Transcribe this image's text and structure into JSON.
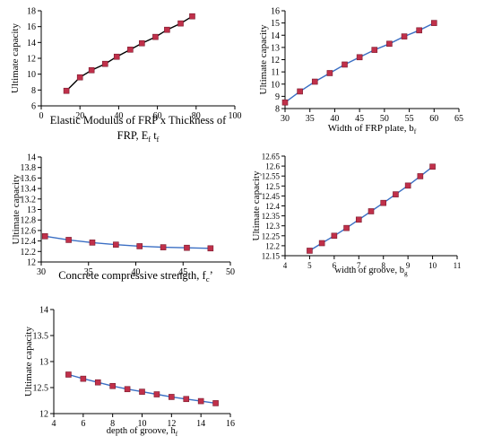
{
  "colors": {
    "line_dark": "#000000",
    "line_blue": "#3b6fc4",
    "marker": "#c0304a",
    "marker_edge": "#7a1b2e",
    "axis": "#000000"
  },
  "chart_data": [
    {
      "type": "line",
      "xlabel": "Elastic Modulus of FRP x Thickness of FRP, E",
      "xlabel_line1": "Elastic Modulus of FRP x Thickness of",
      "xlabel_line2_prefix": "FRP, E",
      "xlabel_sub1": "f",
      "xlabel_mid": " t",
      "xlabel_sub2": "f",
      "ylabel": "Ultimate capacity",
      "xlim": [
        0,
        100
      ],
      "ylim": [
        6,
        18
      ],
      "xticks": [
        "0",
        "20",
        "40",
        "60",
        "80",
        "100"
      ],
      "yticks": [
        "6",
        "8",
        "10",
        "12",
        "14",
        "16",
        "18"
      ],
      "x": [
        13,
        20,
        26,
        33,
        39,
        46,
        52,
        59,
        65,
        72,
        78
      ],
      "y": [
        7.9,
        9.6,
        10.5,
        11.3,
        12.2,
        13.1,
        13.9,
        14.7,
        15.6,
        16.4,
        17.3
      ]
    },
    {
      "type": "line",
      "xlabel_prefix": "Width of FRP plate, b",
      "xlabel_sub": "f",
      "ylabel": "Ultimate capacity",
      "xlim": [
        30,
        65
      ],
      "ylim": [
        8,
        16
      ],
      "xticks": [
        "30",
        "35",
        "40",
        "45",
        "50",
        "55",
        "60",
        "65"
      ],
      "yticks": [
        "8",
        "9",
        "10",
        "11",
        "12",
        "13",
        "14",
        "15",
        "16"
      ],
      "x": [
        30,
        33,
        36,
        39,
        42,
        45,
        48,
        51,
        54,
        57,
        60
      ],
      "y": [
        8.5,
        9.4,
        10.2,
        10.9,
        11.6,
        12.2,
        12.8,
        13.3,
        13.9,
        14.4,
        15.0
      ]
    },
    {
      "type": "line",
      "xlabel_prefix": "Concrete compressive strength, f",
      "xlabel_sub": "c",
      "xlabel_suffix": "’",
      "ylabel": "Ultimate capacity",
      "xlim": [
        30,
        50
      ],
      "ylim": [
        12,
        14
      ],
      "xticks": [
        "30",
        "35",
        "40",
        "45",
        "50"
      ],
      "yticks": [
        "12",
        "12.2",
        "12.4",
        "12.6",
        "12.8",
        "13",
        "13.2",
        "13.4",
        "13.6",
        "13.8",
        "14"
      ],
      "x": [
        30.4,
        32.9,
        35.4,
        37.9,
        40.4,
        42.9,
        45.4,
        47.9
      ],
      "y": [
        12.49,
        12.42,
        12.37,
        12.33,
        12.3,
        12.28,
        12.27,
        12.26
      ]
    },
    {
      "type": "line",
      "xlabel_prefix": "width of groove, b",
      "xlabel_sub": "g",
      "ylabel": "Ultimate capacity",
      "xlim": [
        4,
        11
      ],
      "ylim": [
        12.15,
        12.65
      ],
      "xticks": [
        "4",
        "5",
        "6",
        "7",
        "8",
        "9",
        "10",
        "11"
      ],
      "yticks": [
        "12.15",
        "12.2",
        "12.25",
        "12.3",
        "12.35",
        "12.4",
        "12.45",
        "12.5",
        "12.55",
        "12.6",
        "12.65"
      ],
      "x": [
        5,
        5.5,
        6,
        6.5,
        7,
        7.5,
        8,
        8.5,
        9,
        9.5,
        10
      ],
      "y": [
        12.175,
        12.213,
        12.25,
        12.289,
        12.331,
        12.373,
        12.415,
        12.458,
        12.502,
        12.549,
        12.597
      ]
    },
    {
      "type": "line",
      "xlabel_prefix": "depth of groove, h",
      "xlabel_sub": "f",
      "ylabel": "Ultimate capacity",
      "xlim": [
        4,
        16
      ],
      "ylim": [
        12,
        14
      ],
      "xticks": [
        "4",
        "6",
        "8",
        "10",
        "12",
        "14",
        "16"
      ],
      "yticks": [
        "12",
        "12.5",
        "13",
        "13.5",
        "14"
      ],
      "x": [
        5,
        6,
        7,
        8,
        9,
        10,
        11,
        12,
        13,
        14,
        15
      ],
      "y": [
        12.75,
        12.67,
        12.6,
        12.53,
        12.47,
        12.42,
        12.37,
        12.32,
        12.28,
        12.24,
        12.2
      ]
    }
  ]
}
